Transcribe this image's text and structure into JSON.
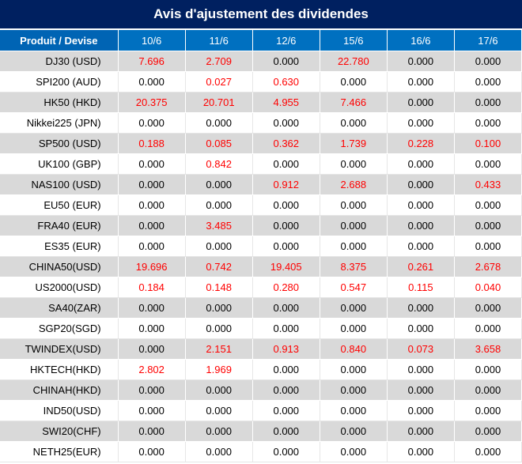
{
  "title": "Avis d'ajustement des dividendes",
  "colors": {
    "title_bg": "#002060",
    "header_bg": "#0070c0",
    "shade": "#d9d9d9",
    "highlight": "#ff0000"
  },
  "headers": [
    "Produit / Devise",
    "10/6",
    "11/6",
    "12/6",
    "15/6",
    "16/6",
    "17/6"
  ],
  "rows": [
    {
      "name": "DJ30 (USD)",
      "values": [
        "7.696",
        "2.709",
        "0.000",
        "22.780",
        "0.000",
        "0.000"
      ],
      "red": [
        true,
        true,
        false,
        true,
        false,
        false
      ]
    },
    {
      "name": "SPI200 (AUD)",
      "values": [
        "0.000",
        "0.027",
        "0.630",
        "0.000",
        "0.000",
        "0.000"
      ],
      "red": [
        false,
        true,
        true,
        false,
        false,
        false
      ]
    },
    {
      "name": "HK50 (HKD)",
      "values": [
        "20.375",
        "20.701",
        "4.955",
        "7.466",
        "0.000",
        "0.000"
      ],
      "red": [
        true,
        true,
        true,
        true,
        false,
        false
      ]
    },
    {
      "name": "Nikkei225 (JPN)",
      "values": [
        "0.000",
        "0.000",
        "0.000",
        "0.000",
        "0.000",
        "0.000"
      ],
      "red": [
        false,
        false,
        false,
        false,
        false,
        false
      ]
    },
    {
      "name": "SP500 (USD)",
      "values": [
        "0.188",
        "0.085",
        "0.362",
        "1.739",
        "0.228",
        "0.100"
      ],
      "red": [
        true,
        true,
        true,
        true,
        true,
        true
      ]
    },
    {
      "name": "UK100 (GBP)",
      "values": [
        "0.000",
        "0.842",
        "0.000",
        "0.000",
        "0.000",
        "0.000"
      ],
      "red": [
        false,
        true,
        false,
        false,
        false,
        false
      ]
    },
    {
      "name": "NAS100 (USD)",
      "values": [
        "0.000",
        "0.000",
        "0.912",
        "2.688",
        "0.000",
        "0.433"
      ],
      "red": [
        false,
        false,
        true,
        true,
        false,
        true
      ]
    },
    {
      "name": "EU50 (EUR)",
      "values": [
        "0.000",
        "0.000",
        "0.000",
        "0.000",
        "0.000",
        "0.000"
      ],
      "red": [
        false,
        false,
        false,
        false,
        false,
        false
      ]
    },
    {
      "name": "FRA40 (EUR)",
      "values": [
        "0.000",
        "3.485",
        "0.000",
        "0.000",
        "0.000",
        "0.000"
      ],
      "red": [
        false,
        true,
        false,
        false,
        false,
        false
      ]
    },
    {
      "name": "ES35 (EUR)",
      "values": [
        "0.000",
        "0.000",
        "0.000",
        "0.000",
        "0.000",
        "0.000"
      ],
      "red": [
        false,
        false,
        false,
        false,
        false,
        false
      ]
    },
    {
      "name": "CHINA50(USD)",
      "values": [
        "19.696",
        "0.742",
        "19.405",
        "8.375",
        "0.261",
        "2.678"
      ],
      "red": [
        true,
        true,
        true,
        true,
        true,
        true
      ]
    },
    {
      "name": "US2000(USD)",
      "values": [
        "0.184",
        "0.148",
        "0.280",
        "0.547",
        "0.115",
        "0.040"
      ],
      "red": [
        true,
        true,
        true,
        true,
        true,
        true
      ]
    },
    {
      "name": "SA40(ZAR)",
      "values": [
        "0.000",
        "0.000",
        "0.000",
        "0.000",
        "0.000",
        "0.000"
      ],
      "red": [
        false,
        false,
        false,
        false,
        false,
        false
      ]
    },
    {
      "name": "SGP20(SGD)",
      "values": [
        "0.000",
        "0.000",
        "0.000",
        "0.000",
        "0.000",
        "0.000"
      ],
      "red": [
        false,
        false,
        false,
        false,
        false,
        false
      ]
    },
    {
      "name": "TWINDEX(USD)",
      "values": [
        "0.000",
        "2.151",
        "0.913",
        "0.840",
        "0.073",
        "3.658"
      ],
      "red": [
        false,
        true,
        true,
        true,
        true,
        true
      ]
    },
    {
      "name": "HKTECH(HKD)",
      "values": [
        "2.802",
        "1.969",
        "0.000",
        "0.000",
        "0.000",
        "0.000"
      ],
      "red": [
        true,
        true,
        false,
        false,
        false,
        false
      ]
    },
    {
      "name": "CHINAH(HKD)",
      "values": [
        "0.000",
        "0.000",
        "0.000",
        "0.000",
        "0.000",
        "0.000"
      ],
      "red": [
        false,
        false,
        false,
        false,
        false,
        false
      ]
    },
    {
      "name": "IND50(USD)",
      "values": [
        "0.000",
        "0.000",
        "0.000",
        "0.000",
        "0.000",
        "0.000"
      ],
      "red": [
        false,
        false,
        false,
        false,
        false,
        false
      ]
    },
    {
      "name": "SWI20(CHF)",
      "values": [
        "0.000",
        "0.000",
        "0.000",
        "0.000",
        "0.000",
        "0.000"
      ],
      "red": [
        false,
        false,
        false,
        false,
        false,
        false
      ]
    },
    {
      "name": "NETH25(EUR)",
      "values": [
        "0.000",
        "0.000",
        "0.000",
        "0.000",
        "0.000",
        "0.000"
      ],
      "red": [
        false,
        false,
        false,
        false,
        false,
        false
      ]
    }
  ]
}
